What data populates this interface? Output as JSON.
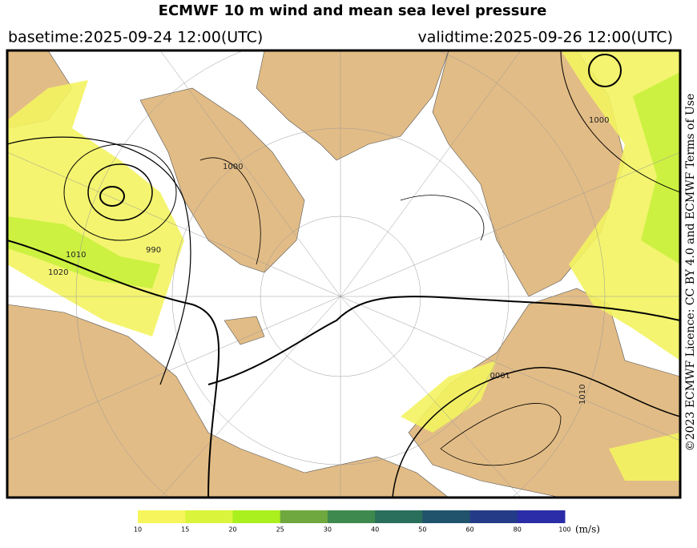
{
  "header": {
    "title": "ECMWF 10 m wind and mean sea level pressure",
    "basetime": "basetime:2025-09-24 12:00(UTC)",
    "validtime": "validtime:2025-09-26 12:00(UTC)"
  },
  "credit": "©2023 ECMWF Licence: CC BY 4.0 and ECMWF Terms of Use",
  "isobar_labels": [
    "1000",
    "990",
    "1010",
    "1020",
    "1000",
    "1010",
    "1000"
  ],
  "colorbar": {
    "ticks": [
      10,
      15,
      20,
      25,
      30,
      40,
      50,
      60,
      80,
      100
    ],
    "colors": [
      "#f6f65c",
      "#daf43c",
      "#aaef1e",
      "#6fa83e",
      "#3e8a4e",
      "#2a6e5c",
      "#21536c",
      "#243c88",
      "#2a2ca8"
    ],
    "unit": "(m/s)"
  }
}
